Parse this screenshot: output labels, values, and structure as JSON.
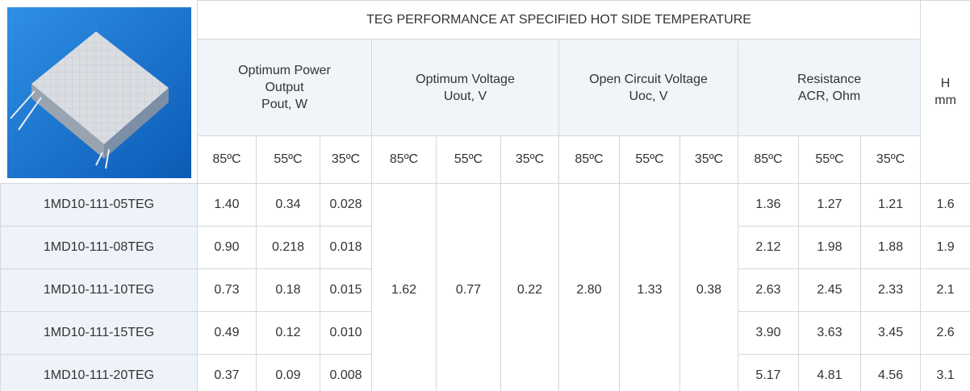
{
  "header": {
    "title": "TEG PERFORMANCE AT SPECIFIED HOT SIDE TEMPERATURE",
    "groups": [
      [
        "Optimum Power",
        "Output",
        "Pout, W"
      ],
      [
        "Optimum Voltage",
        "Uout, V"
      ],
      [
        "Open Circuit Voltage",
        "Uoc, V"
      ],
      [
        "Resistance",
        "ACR, Ohm"
      ]
    ],
    "h": [
      "H",
      "mm"
    ],
    "temps": [
      "85ºC",
      "55ºC",
      "35ºC",
      "85ºC",
      "55ºC",
      "35ºC",
      "85ºC",
      "55ºC",
      "35ºC",
      "85ºC",
      "55ºC",
      "35ºC"
    ]
  },
  "voltages": [
    "1.62",
    "0.77",
    "0.22",
    "2.80",
    "1.33",
    "0.38"
  ],
  "rows": [
    {
      "name": "1MD10-111-05TEG",
      "power": [
        "1.40",
        "0.34",
        "0.028"
      ],
      "resistance": [
        "1.36",
        "1.27",
        "1.21"
      ],
      "h": "1.6"
    },
    {
      "name": "1MD10-111-08TEG",
      "power": [
        "0.90",
        "0.218",
        "0.018"
      ],
      "resistance": [
        "2.12",
        "1.98",
        "1.88"
      ],
      "h": "1.9"
    },
    {
      "name": "1MD10-111-10TEG",
      "power": [
        "0.73",
        "0.18",
        "0.015"
      ],
      "resistance": [
        "2.63",
        "2.45",
        "2.33"
      ],
      "h": "2.1"
    },
    {
      "name": "1MD10-111-15TEG",
      "power": [
        "0.49",
        "0.12",
        "0.010"
      ],
      "resistance": [
        "3.90",
        "3.63",
        "3.45"
      ],
      "h": "2.6"
    },
    {
      "name": "1MD10-111-20TEG",
      "power": [
        "0.37",
        "0.09",
        "0.008"
      ],
      "resistance": [
        "5.17",
        "4.81",
        "4.56"
      ],
      "h": "3.1"
    }
  ]
}
